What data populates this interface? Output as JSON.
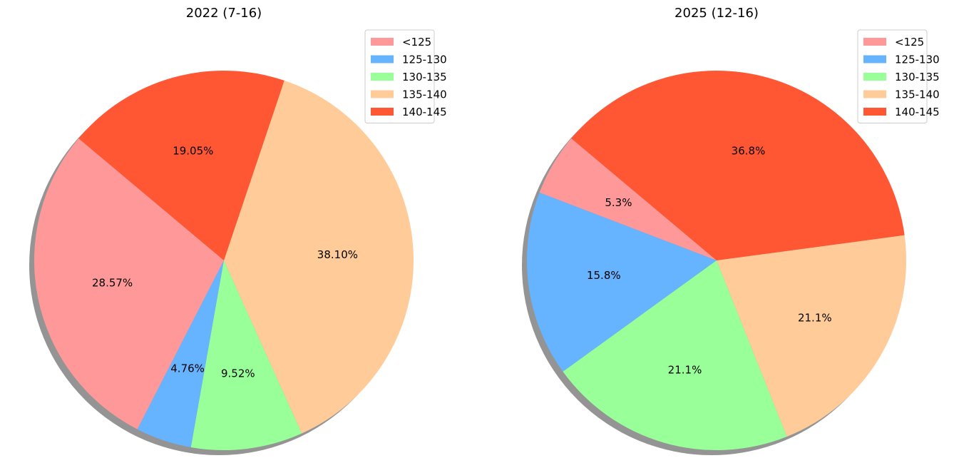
{
  "chart_data": [
    {
      "type": "pie",
      "title": "2022 (7-16)",
      "categories": [
        "<125",
        "125-130",
        "130-135",
        "135-140",
        "140-145"
      ],
      "values": [
        28.57,
        4.76,
        9.52,
        38.1,
        19.05
      ],
      "value_labels": [
        "28.57%",
        "4.76%",
        "9.52%",
        "38.10%",
        "19.05%"
      ],
      "start_angle_deg": 140,
      "direction": "counterclockwise",
      "shadow": true,
      "legend_position": "top-right"
    },
    {
      "type": "pie",
      "title": "2025 (12-16)",
      "categories": [
        "<125",
        "125-130",
        "130-135",
        "135-140",
        "140-145"
      ],
      "values": [
        5.3,
        15.8,
        21.1,
        21.1,
        36.8
      ],
      "value_labels": [
        "5.3%",
        "15.8%",
        "21.1%",
        "21.1%",
        "36.8%"
      ],
      "start_angle_deg": 140,
      "direction": "counterclockwise",
      "shadow": true,
      "legend_position": "top-right"
    }
  ],
  "colors": [
    "#ff9999",
    "#66b3ff",
    "#99ff99",
    "#ffcc99",
    "#ff5733"
  ]
}
